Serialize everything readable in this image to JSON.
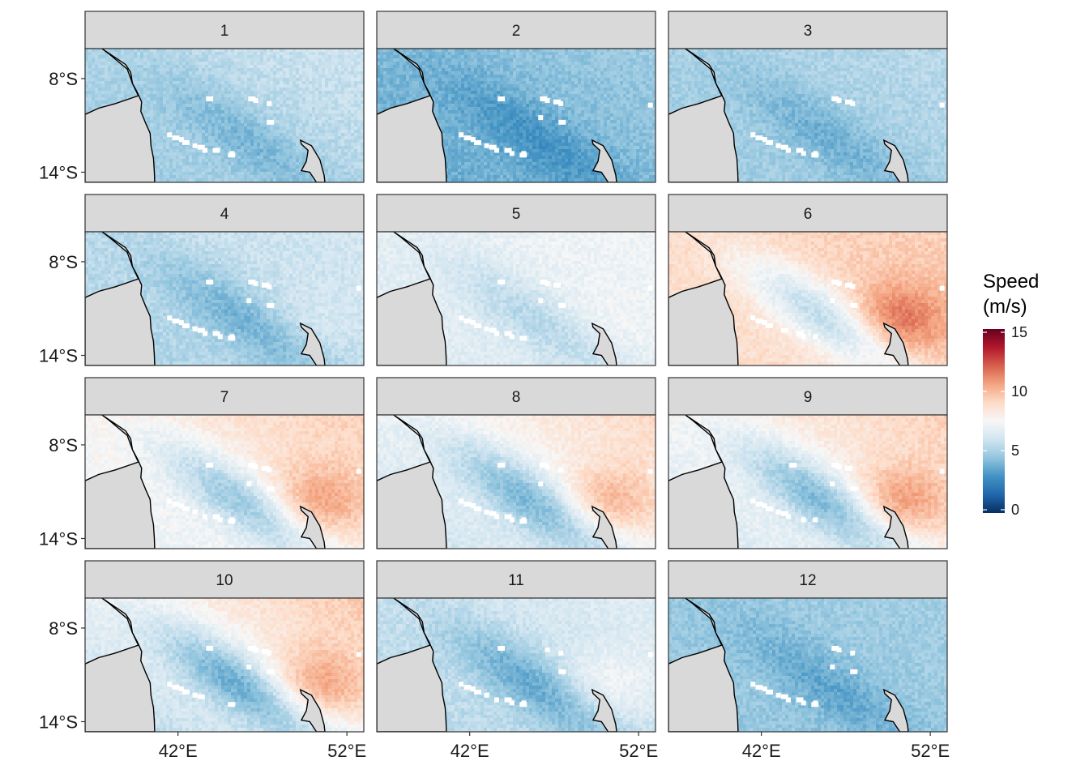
{
  "chart_data": {
    "type": "heatmap",
    "title": "",
    "panels": [
      "1",
      "2",
      "3",
      "4",
      "5",
      "6",
      "7",
      "8",
      "9",
      "10",
      "11",
      "12"
    ],
    "xaxis": {
      "ticks": [
        42,
        52
      ],
      "tick_labels": [
        "42°E",
        "52°E"
      ]
    },
    "yaxis": {
      "ticks": [
        -8,
        -14
      ],
      "tick_labels": [
        "8°S",
        "14°S"
      ]
    },
    "legend": {
      "title_lines": [
        "Speed",
        "(m/s)"
      ],
      "ticks": [
        0,
        5,
        10,
        15
      ],
      "tick_labels": [
        "0",
        "5",
        "10",
        "15"
      ],
      "range": [
        0,
        15
      ],
      "colors": [
        "#053061",
        "#2166ac",
        "#4393c3",
        "#92c5de",
        "#d1e5f0",
        "#f7f7f7",
        "#fddbc7",
        "#f4a582",
        "#d6604d",
        "#b2182b",
        "#67001f"
      ]
    },
    "panel_fields": [
      {
        "base": 4.6,
        "ne": 6.0,
        "jet": 0.0
      },
      {
        "base": 3.6,
        "ne": 4.8,
        "jet": 0.0
      },
      {
        "base": 4.7,
        "ne": 5.4,
        "jet": 0.0
      },
      {
        "base": 5.0,
        "ne": 6.2,
        "jet": 0.5
      },
      {
        "base": 6.4,
        "ne": 7.3,
        "jet": 0.3
      },
      {
        "base": 8.6,
        "ne": 9.4,
        "jet": 2.5
      },
      {
        "base": 6.6,
        "ne": 9.3,
        "jet": 2.3
      },
      {
        "base": 5.6,
        "ne": 9.0,
        "jet": 2.3
      },
      {
        "base": 6.0,
        "ne": 9.3,
        "jet": 2.6
      },
      {
        "base": 5.0,
        "ne": 9.6,
        "jet": 2.6
      },
      {
        "base": 5.2,
        "ne": 6.6,
        "jet": 1.2
      },
      {
        "base": 4.6,
        "ne": 4.9,
        "jet": 0.0
      }
    ]
  }
}
